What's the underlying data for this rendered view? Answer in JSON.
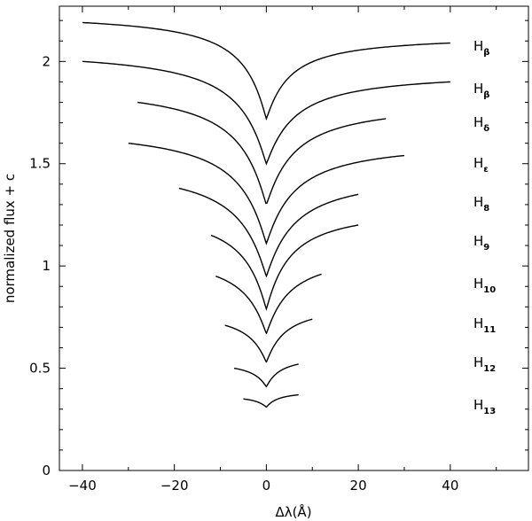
{
  "chart_data": {
    "type": "line",
    "title": "",
    "xlabel": "Δλ(Å)",
    "ylabel": "normalized flux + c",
    "xlim": [
      -45,
      57
    ],
    "ylim": [
      0,
      2.27
    ],
    "xticks": [
      -40,
      -20,
      0,
      20,
      40
    ],
    "xtick_labels": [
      "−40",
      "−20",
      "0",
      "20",
      "40"
    ],
    "yticks": [
      0,
      0.5,
      1,
      1.5,
      2
    ],
    "ytick_labels": [
      "0",
      "0.5",
      "1",
      "1.5",
      "2"
    ],
    "grid": false,
    "legend": "none",
    "series": [
      {
        "label_main": "H",
        "label_sub": "β",
        "x_range": [
          -40,
          40
        ],
        "center": 1.72,
        "left_end": 2.19,
        "right_end": 2.09,
        "width": 5
      },
      {
        "label_main": "H",
        "label_sub": "β",
        "x_range": [
          -40,
          40
        ],
        "center": 1.5,
        "left_end": 2.0,
        "right_end": 1.9,
        "width": 6
      },
      {
        "label_main": "H",
        "label_sub": "δ",
        "x_range": [
          -28,
          26
        ],
        "center": 1.3,
        "left_end": 1.8,
        "right_end": 1.72,
        "width": 6
      },
      {
        "label_main": "H",
        "label_sub": "ε",
        "x_range": [
          -30,
          30
        ],
        "center": 1.11,
        "left_end": 1.6,
        "right_end": 1.54,
        "width": 6
      },
      {
        "label_main": "H",
        "label_sub": "8",
        "x_range": [
          -19,
          20
        ],
        "center": 0.95,
        "left_end": 1.38,
        "right_end": 1.35,
        "width": 6
      },
      {
        "label_main": "H",
        "label_sub": "9",
        "x_range": [
          -12,
          20
        ],
        "center": 0.79,
        "left_end": 1.15,
        "right_end": 1.2,
        "width": 5
      },
      {
        "label_main": "H",
        "label_sub": "10",
        "x_range": [
          -11,
          12
        ],
        "center": 0.67,
        "left_end": 0.95,
        "right_end": 0.96,
        "width": 5
      },
      {
        "label_main": "H",
        "label_sub": "11",
        "x_range": [
          -9,
          10
        ],
        "center": 0.53,
        "left_end": 0.71,
        "right_end": 0.74,
        "width": 4
      },
      {
        "label_main": "H",
        "label_sub": "12",
        "x_range": [
          -7,
          7
        ],
        "center": 0.41,
        "left_end": 0.5,
        "right_end": 0.52,
        "width": 3
      },
      {
        "label_main": "H",
        "label_sub": "13",
        "x_range": [
          -5,
          7
        ],
        "center": 0.31,
        "left_end": 0.35,
        "right_end": 0.37,
        "width": 2.5
      }
    ]
  }
}
